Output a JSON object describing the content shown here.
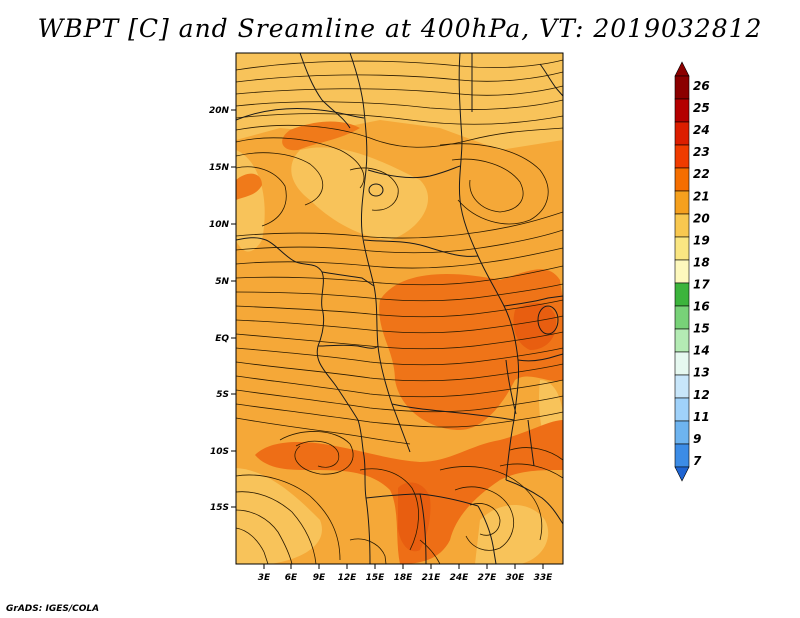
{
  "title": "WBPT [C] and Sreamline at 400hPa, VT: 2019032812",
  "credit": "GrADS: IGES/COLA",
  "map": {
    "lon_ticks": [
      "3E",
      "6E",
      "9E",
      "12E",
      "15E",
      "18E",
      "21E",
      "24E",
      "27E",
      "30E",
      "33E"
    ],
    "lat_ticks": [
      "20N",
      "15N",
      "10N",
      "5N",
      "EQ",
      "5S",
      "10S",
      "15S"
    ]
  },
  "colorbar": {
    "labels": [
      "26",
      "25",
      "24",
      "23",
      "22",
      "21",
      "20",
      "19",
      "18",
      "17",
      "16",
      "15",
      "14",
      "13",
      "12",
      "11",
      "9",
      "7"
    ],
    "colors": [
      "#8b0000",
      "#b40000",
      "#dc1e00",
      "#f03c00",
      "#f56e00",
      "#f5a01e",
      "#f8c850",
      "#fae682",
      "#fdf8bd",
      "#3cb43c",
      "#78d278",
      "#b4ebb4",
      "#e6f8f0",
      "#c8e6fa",
      "#a0d2fa",
      "#6eb4f0",
      "#3c8ce6",
      "#1e64d2"
    ]
  }
}
